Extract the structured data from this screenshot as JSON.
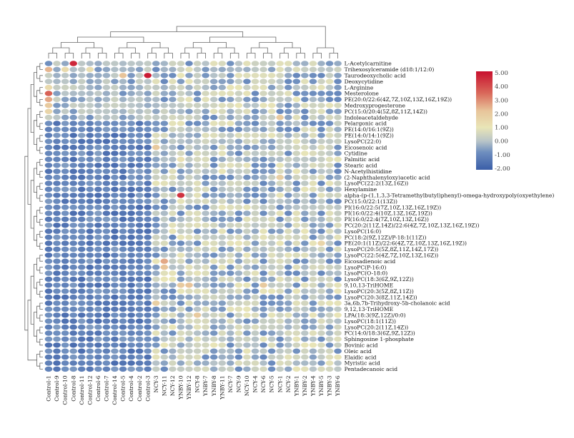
{
  "chart_data": {
    "type": "heatmap",
    "title": "",
    "columns": [
      "Control-1",
      "Control-9",
      "Control-10",
      "Control-8",
      "Control-11",
      "Control-12",
      "Control-6",
      "Control-7",
      "Control-14",
      "Control-5",
      "Control-4",
      "Control-2",
      "Control-3",
      "NCY-3",
      "NCY-11",
      "NCY-12",
      "YNBY-10",
      "YNBY-12",
      "NCY-8",
      "YNBY-7",
      "YNBY-8",
      "YNBY-11",
      "NCY-7",
      "NCY-9",
      "NCY-10",
      "NCY-4",
      "NCY-6",
      "NCY-5",
      "NCY-1",
      "NCY-2",
      "YNBY-1",
      "YNBY-2",
      "YNBY-4",
      "YNBY-5",
      "YNBY-3",
      "YNBY-6"
    ],
    "rows": [
      "L-Acetylcarnitine",
      "Trihexosylceramide (d18:1/12:0)",
      "Taurodeoxycholic acid",
      "Deoxycytidine",
      "L-Arginine",
      "Mesterolone",
      "PE(20:0/22:6(4Z,7Z,10Z,13Z,16Z,19Z))",
      "Medroxyprogesterone",
      "PC(15:0/20:4(5Z,8Z,11Z,14Z))",
      "Indoleacetaldehyde",
      "Pelargonic acid",
      "PE(14:0/16:1(9Z))",
      "PE(14:0/14:1(9Z))",
      "LysoPC(22:0)",
      "Eicosenoic acid",
      "Cytidine",
      "Palmitic acid",
      "Stearic acid",
      "N-Acetylhistidine",
      "(2-Naphthalenyloxy)acetic acid",
      "LysoPC(22:2(13Z,16Z))",
      "Hexylamine",
      "alpha-(p-(1,1,3,3-Tetramethylbutyl)phenyl)-omega-hydroxypoly(oxyethylene)",
      "PC(15:0/22:1(13Z))",
      "PI(16:0/22:5(7Z,10Z,13Z,16Z,19Z))",
      "PI(16:0/22:4(10Z,13Z,16Z,19Z))",
      "PI(16:0/22:4(7Z,10Z,13Z,16Z))",
      "PC(20:2(11Z,14Z)/22:6(4Z,7Z,10Z,13Z,16Z,19Z))",
      "LysoPC(16:0)",
      "PC(18:2(9Z,12Z)/P-18:1(11Z))",
      "PE(20:1(11Z)/22:6(4Z,7Z,10Z,13Z,16Z,19Z))",
      "LysoPC(20:5(5Z,8Z,11Z,14Z,17Z))",
      "LysoPC(22:5(4Z,7Z,10Z,13Z,16Z))",
      "Eicosadienoic acid",
      "LysoPC(P-16:0)",
      "LysoPC(O-18:0)",
      "LysoPC(18:3(6Z,9Z,12Z))",
      "9,10,13-TriHOME",
      "LysoPC(20:3(5Z,8Z,11Z))",
      "LysoPC(20:3(8Z,11Z,14Z))",
      "3a,6b,7b-Trihydroxy-5b-cholanoic acid",
      "9,12,13-TriHOME",
      "LPA(18:3(9Z,12Z)/0:0)",
      "LysoPC(18:1(11Z))",
      "LysoPC(20:2(11Z,14Z))",
      "PC(14:0/18:3(6Z,9Z,12Z))",
      "Sphingosine 1-phosphate",
      "Bovinic acid",
      "Oleic acid",
      "Elaidic acid",
      "Myristic acid",
      "Pentadecanoic acid"
    ],
    "colorbar": {
      "ticks": [
        "5.00",
        "4.00",
        "3.00",
        "2.00",
        "1.00",
        "0.00",
        "-1.00",
        "-2.00"
      ],
      "range": [
        -2,
        5
      ],
      "colors": [
        "#3b5ea8",
        "#e9e5b7",
        "#c8102e"
      ]
    },
    "dendrograms": {
      "rows": "left",
      "columns": "top"
    },
    "values_note": "Per-cell values are drawn as colored ellipses; Control columns mostly low (blue), other groups near 0 to 1 with occasional high spots."
  }
}
